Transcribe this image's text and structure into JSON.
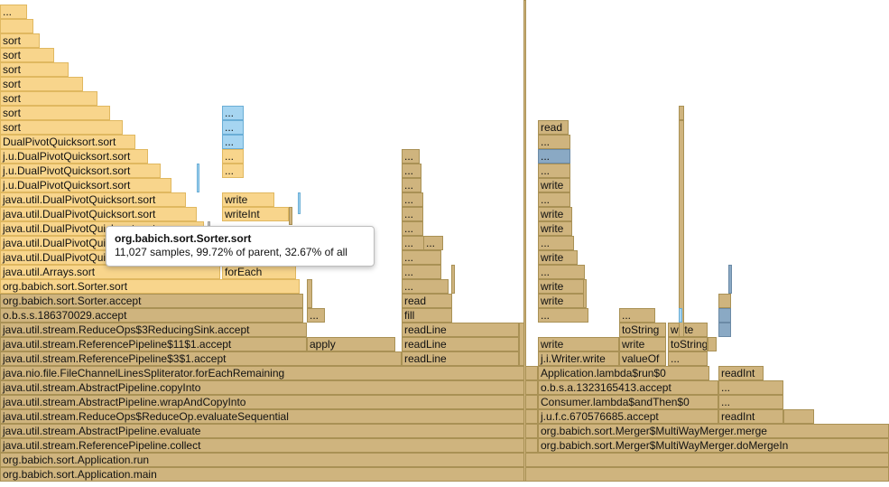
{
  "colors": {
    "yellow": "#f8d58c",
    "tan": "#cfb47e",
    "blue": "#a6d5f1",
    "slate": "#8aa9c4",
    "gray": "#c3c3c3"
  },
  "tooltip": {
    "title": "org.babich.sort.Sorter.sort",
    "detail": "11,027 samples, 99.72% of parent, 32.67% of all"
  },
  "frames": [
    {
      "label": "org.babich.sort.Application.main",
      "c": "t"
    },
    {
      "label": "org.babich.sort.Application.run",
      "c": "t"
    },
    {
      "label": "java.util.stream.ReferencePipeline.collect",
      "c": "t"
    },
    {
      "label": "java.util.stream.AbstractPipeline.evaluate",
      "c": "t"
    },
    {
      "label": "java.util.stream.ReduceOps$ReduceOp.evaluateSequential",
      "c": "t"
    },
    {
      "label": "java.util.stream.AbstractPipeline.wrapAndCopyInto",
      "c": "t"
    },
    {
      "label": "java.util.stream.AbstractPipeline.copyInto",
      "c": "t"
    },
    {
      "label": "java.nio.file.FileChannelLinesSpliterator.forEachRemaining",
      "c": "t"
    },
    {
      "label": "java.util.stream.ReferencePipeline$3$1.accept",
      "c": "t"
    },
    {
      "label": "java.util.stream.ReferencePipeline$11$1.accept",
      "c": "t"
    },
    {
      "label": "java.util.stream.ReduceOps$3ReducingSink.accept",
      "c": "t"
    },
    {
      "label": "o.b.s.s.186370029.accept",
      "c": "t"
    },
    {
      "label": "org.babich.sort.Sorter.accept",
      "c": "t"
    },
    {
      "label": "org.babich.sort.Sorter.sort",
      "c": "y"
    },
    {
      "label": "java.util.Arrays.sort",
      "c": "y"
    },
    {
      "label": "java.util.DualPivotQuicksort.sort",
      "c": "y"
    },
    {
      "label": "java.util.DualPivotQuicksort.sort",
      "c": "y"
    },
    {
      "label": "java.util.DualPivotQuicksort.sort",
      "c": "y"
    },
    {
      "label": "java.util.DualPivotQuicksort.sort",
      "c": "y"
    },
    {
      "label": "java.util.DualPivotQuicksort.sort",
      "c": "y"
    },
    {
      "label": "j.u.DualPivotQuicksort.sort",
      "c": "y"
    },
    {
      "label": "j.u.DualPivotQuicksort.sort",
      "c": "y"
    },
    {
      "label": "j.u.DualPivotQuicksort.sort",
      "c": "y"
    },
    {
      "label": "DualPivotQuicksort.sort",
      "c": "y"
    },
    {
      "label": "sort",
      "c": "y"
    },
    {
      "label": "sort",
      "c": "y"
    },
    {
      "label": "sort",
      "c": "y"
    },
    {
      "label": "sort",
      "c": "y"
    },
    {
      "label": "sort",
      "c": "y"
    },
    {
      "label": "sort",
      "c": "y"
    },
    {
      "label": "sort",
      "c": "y"
    },
    {
      "label": "...",
      "c": "y"
    },
    {
      "label": "",
      "c": "y"
    },
    {
      "label": "",
      "c": "t"
    },
    {
      "label": "...",
      "c": "t"
    },
    {
      "label": "apply",
      "c": "t"
    },
    {
      "label": "forEach",
      "c": "y"
    },
    {
      "label": "",
      "c": "y"
    },
    {
      "label": "",
      "c": "y"
    },
    {
      "label": "writeInt",
      "c": "y"
    },
    {
      "label": "write",
      "c": "y"
    },
    {
      "label": "...",
      "c": "y"
    },
    {
      "label": "...",
      "c": "y"
    },
    {
      "label": "...",
      "c": "b"
    },
    {
      "label": "...",
      "c": "b"
    },
    {
      "label": "...",
      "c": "b"
    },
    {
      "label": "readLine",
      "c": "t"
    },
    {
      "label": "readLine",
      "c": "t"
    },
    {
      "label": "readLine",
      "c": "t"
    },
    {
      "label": "fill",
      "c": "t"
    },
    {
      "label": "read",
      "c": "t"
    },
    {
      "label": "...",
      "c": "t"
    },
    {
      "label": "...",
      "c": "t"
    },
    {
      "label": "...",
      "c": "t"
    },
    {
      "label": "...",
      "c": "t"
    },
    {
      "label": "...",
      "c": "t"
    },
    {
      "label": "...",
      "c": "t"
    },
    {
      "label": "...",
      "c": "t"
    },
    {
      "label": "...",
      "c": "t"
    },
    {
      "label": "...",
      "c": "t"
    },
    {
      "label": "...",
      "c": "t"
    },
    {
      "label": "...",
      "c": "t"
    },
    {
      "label": "org.babich.sort.Merger$MultiWayMerger.doMergeIn",
      "c": "t"
    },
    {
      "label": "org.babich.sort.Merger$MultiWayMerger.merge",
      "c": "t"
    },
    {
      "label": "j.u.f.c.670576685.accept",
      "c": "t"
    },
    {
      "label": "Consumer.lambda$andThen$0",
      "c": "t"
    },
    {
      "label": "o.b.s.a.1323165413.accept",
      "c": "t"
    },
    {
      "label": "Application.lambda$run$0",
      "c": "t"
    },
    {
      "label": "j.i.Writer.write",
      "c": "t"
    },
    {
      "label": "valueOf",
      "c": "t"
    },
    {
      "label": "...",
      "c": "t"
    },
    {
      "label": "write",
      "c": "t"
    },
    {
      "label": "toString",
      "c": "t"
    },
    {
      "label": "write",
      "c": "t"
    },
    {
      "label": "toString",
      "c": "t"
    },
    {
      "label": "write",
      "c": "t"
    },
    {
      "label": "...",
      "c": "t"
    },
    {
      "label": "...",
      "c": "t"
    },
    {
      "label": "write",
      "c": "t"
    },
    {
      "label": "write",
      "c": "t"
    },
    {
      "label": "...",
      "c": "t"
    },
    {
      "label": "write",
      "c": "t"
    },
    {
      "label": "...",
      "c": "t"
    },
    {
      "label": "write",
      "c": "t"
    },
    {
      "label": "write",
      "c": "t"
    },
    {
      "label": "...",
      "c": "t"
    },
    {
      "label": "write",
      "c": "t"
    },
    {
      "label": "...",
      "c": "t"
    },
    {
      "label": "...",
      "c": "g"
    },
    {
      "label": "...",
      "c": "t"
    },
    {
      "label": "read",
      "c": "t"
    },
    {
      "label": "readInt",
      "c": "t"
    },
    {
      "label": "readInt",
      "c": "t"
    },
    {
      "label": "...",
      "c": "t"
    },
    {
      "label": "...",
      "c": "t"
    },
    {
      "label": "",
      "c": "t"
    },
    {
      "label": "",
      "c": "t"
    },
    {
      "label": "",
      "c": "g"
    },
    {
      "label": "",
      "c": "g"
    },
    {
      "label": "",
      "c": "t"
    },
    {
      "label": "",
      "c": "g"
    },
    {
      "label": "",
      "c": "t"
    },
    {
      "label": "",
      "c": "t"
    },
    {
      "label": "",
      "c": "t"
    },
    {
      "label": "",
      "c": "t"
    },
    {
      "label": "",
      "c": "t"
    },
    {
      "label": "",
      "c": "b"
    },
    {
      "label": "",
      "c": "b"
    },
    {
      "label": "",
      "c": "b"
    },
    {
      "label": "",
      "c": "t"
    },
    {
      "label": "",
      "c": "t"
    },
    {
      "label": "",
      "c": "s"
    }
  ]
}
